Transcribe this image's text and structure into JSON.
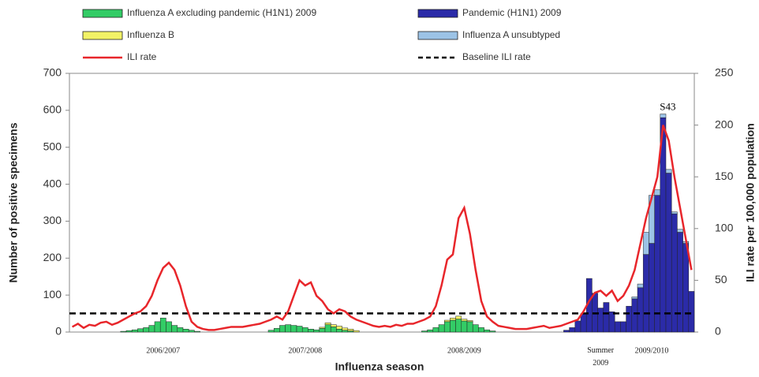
{
  "chart_data": {
    "type": "bar",
    "x_label": "Influenza season",
    "y_label": "Number of positive specimens",
    "y2_label": "ILI rate per 100,000 population",
    "annotation": "S43",
    "categories": [
      null,
      null,
      null,
      null,
      null,
      null,
      null,
      null,
      null,
      null,
      null,
      null,
      null,
      null,
      null,
      null,
      "2006/2007",
      null,
      null,
      null,
      null,
      null,
      null,
      null,
      null,
      null,
      null,
      null,
      null,
      null,
      null,
      null,
      null,
      null,
      null,
      null,
      null,
      null,
      null,
      null,
      null,
      "2007/2008",
      null,
      null,
      null,
      null,
      null,
      null,
      null,
      null,
      null,
      null,
      null,
      null,
      null,
      null,
      null,
      null,
      null,
      null,
      null,
      null,
      null,
      null,
      null,
      null,
      null,
      null,
      null,
      "2008/2009",
      null,
      null,
      null,
      null,
      null,
      null,
      null,
      null,
      null,
      null,
      null,
      null,
      null,
      null,
      null,
      null,
      null,
      null,
      null,
      null,
      null,
      null,
      null,
      "Summer 2009",
      null,
      null,
      null,
      null,
      null,
      null,
      null,
      null,
      "2009/2010",
      null,
      null,
      null,
      null,
      null,
      null,
      null
    ],
    "series": [
      {
        "name": "Influenza A excluding pandemic (H1N1) 2009",
        "color": "#33cc66",
        "values": [
          0,
          0,
          0,
          0,
          0,
          0,
          0,
          0,
          0,
          2,
          4,
          6,
          9,
          12,
          18,
          28,
          38,
          28,
          18,
          12,
          8,
          5,
          2,
          0,
          0,
          0,
          0,
          0,
          0,
          0,
          0,
          0,
          0,
          0,
          0,
          5,
          10,
          18,
          20,
          18,
          16,
          12,
          8,
          6,
          10,
          20,
          14,
          8,
          5,
          3,
          0,
          0,
          0,
          0,
          0,
          0,
          0,
          0,
          0,
          0,
          0,
          0,
          3,
          6,
          12,
          20,
          28,
          32,
          35,
          30,
          28,
          20,
          12,
          6,
          3,
          0,
          0,
          0,
          0,
          0,
          0,
          0,
          0,
          0,
          0,
          0,
          0,
          0,
          0,
          0,
          0,
          0,
          0,
          0,
          0,
          0,
          0,
          0,
          0,
          0,
          0,
          0,
          0,
          0,
          0,
          0,
          0,
          0,
          0,
          0
        ]
      },
      {
        "name": "Pandemic (H1N1) 2009",
        "color": "#2b2ba8",
        "values": [
          0,
          0,
          0,
          0,
          0,
          0,
          0,
          0,
          0,
          0,
          0,
          0,
          0,
          0,
          0,
          0,
          0,
          0,
          0,
          0,
          0,
          0,
          0,
          0,
          0,
          0,
          0,
          0,
          0,
          0,
          0,
          0,
          0,
          0,
          0,
          0,
          0,
          0,
          0,
          0,
          0,
          0,
          0,
          0,
          0,
          0,
          0,
          0,
          0,
          0,
          0,
          0,
          0,
          0,
          0,
          0,
          0,
          0,
          0,
          0,
          0,
          0,
          0,
          0,
          0,
          0,
          0,
          0,
          0,
          0,
          0,
          0,
          0,
          0,
          0,
          0,
          0,
          0,
          0,
          0,
          0,
          0,
          0,
          0,
          0,
          0,
          0,
          5,
          12,
          30,
          50,
          145,
          105,
          65,
          80,
          55,
          28,
          28,
          70,
          90,
          120,
          210,
          240,
          370,
          580,
          430,
          320,
          270,
          240,
          110
        ]
      },
      {
        "name": "Influenza B",
        "color": "#f2f266",
        "values": [
          0,
          0,
          0,
          0,
          0,
          0,
          0,
          0,
          0,
          0,
          0,
          0,
          0,
          0,
          0,
          0,
          0,
          0,
          0,
          0,
          0,
          0,
          0,
          0,
          0,
          0,
          0,
          0,
          0,
          0,
          0,
          0,
          0,
          0,
          0,
          0,
          0,
          0,
          0,
          0,
          0,
          0,
          0,
          0,
          3,
          5,
          6,
          8,
          6,
          5,
          4,
          0,
          0,
          0,
          0,
          0,
          0,
          0,
          0,
          0,
          0,
          0,
          0,
          0,
          0,
          0,
          4,
          6,
          8,
          5,
          3,
          0,
          0,
          0,
          0,
          0,
          0,
          0,
          0,
          0,
          0,
          0,
          0,
          0,
          0,
          0,
          0,
          0,
          0,
          0,
          0,
          0,
          0,
          0,
          0,
          0,
          0,
          0,
          0,
          0,
          0,
          0,
          0,
          0,
          0,
          0,
          0,
          0,
          0,
          0
        ]
      },
      {
        "name": "Influenza A unsubtyped",
        "color": "#9cc3e6",
        "values": [
          0,
          0,
          0,
          0,
          0,
          0,
          0,
          0,
          0,
          0,
          0,
          0,
          0,
          0,
          0,
          0,
          0,
          0,
          0,
          0,
          0,
          0,
          0,
          0,
          0,
          0,
          0,
          0,
          0,
          0,
          0,
          0,
          0,
          0,
          0,
          0,
          0,
          0,
          0,
          0,
          0,
          0,
          0,
          0,
          0,
          0,
          0,
          0,
          0,
          0,
          0,
          0,
          0,
          0,
          0,
          0,
          0,
          0,
          0,
          0,
          0,
          0,
          0,
          0,
          0,
          0,
          0,
          0,
          0,
          0,
          0,
          0,
          0,
          0,
          0,
          0,
          0,
          0,
          0,
          0,
          0,
          0,
          0,
          0,
          0,
          0,
          0,
          0,
          0,
          0,
          0,
          0,
          0,
          0,
          0,
          0,
          0,
          0,
          0,
          5,
          10,
          60,
          130,
          15,
          10,
          10,
          5,
          8,
          5,
          0
        ]
      },
      {
        "name": "ILI rate",
        "color": "#e8262b",
        "axis": "y2",
        "type": "line",
        "values": [
          5,
          8,
          4,
          7,
          6,
          9,
          10,
          7,
          9,
          12,
          15,
          18,
          20,
          25,
          35,
          50,
          62,
          67,
          60,
          45,
          25,
          10,
          5,
          3,
          2,
          2,
          3,
          4,
          5,
          5,
          5,
          6,
          7,
          8,
          10,
          12,
          15,
          12,
          20,
          35,
          50,
          45,
          48,
          35,
          30,
          22,
          18,
          22,
          20,
          15,
          12,
          10,
          8,
          6,
          5,
          6,
          5,
          7,
          6,
          8,
          8,
          10,
          12,
          15,
          25,
          45,
          70,
          75,
          110,
          120,
          95,
          60,
          30,
          15,
          10,
          6,
          5,
          4,
          3,
          3,
          3,
          4,
          5,
          6,
          4,
          5,
          6,
          8,
          10,
          12,
          20,
          30,
          38,
          40,
          35,
          40,
          30,
          35,
          45,
          60,
          85,
          110,
          130,
          150,
          200,
          185,
          150,
          120,
          90,
          60
        ]
      }
    ],
    "baseline": {
      "name": "Baseline ILI rate",
      "color": "#000000",
      "value": 18
    },
    "ylim": [
      0,
      700
    ],
    "yticks": [
      0,
      100,
      200,
      300,
      400,
      500,
      600,
      700
    ],
    "y2lim": [
      0,
      250
    ],
    "y2ticks": [
      0,
      50,
      100,
      150,
      200,
      250
    ]
  }
}
